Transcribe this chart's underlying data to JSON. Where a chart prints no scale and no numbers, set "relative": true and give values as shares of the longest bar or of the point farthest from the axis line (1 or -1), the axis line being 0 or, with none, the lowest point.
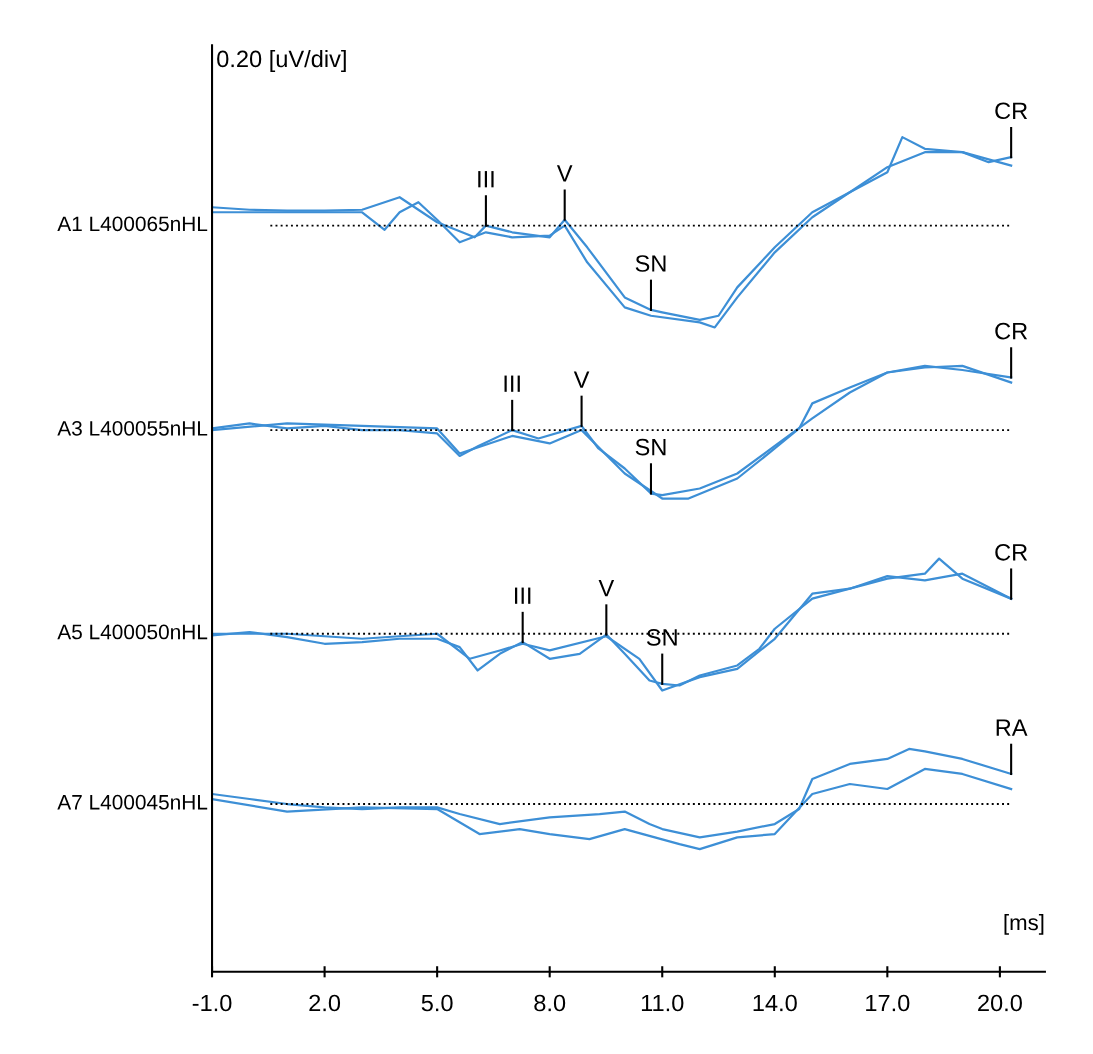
{
  "chart_data": {
    "type": "line",
    "relative": true,
    "xlabel": "[ms]",
    "ylabel": "0.20 [uV/div]",
    "xlim": [
      -1.0,
      21.2
    ],
    "xticks": [
      {
        "value": -1,
        "label": "-1.0"
      },
      {
        "value": 2,
        "label": "2.0"
      },
      {
        "value": 5,
        "label": "5.0"
      },
      {
        "value": 8,
        "label": "8.0"
      },
      {
        "value": 11,
        "label": "11.0"
      },
      {
        "value": 14,
        "label": "14.0"
      },
      {
        "value": 17,
        "label": "17.0"
      },
      {
        "value": 20,
        "label": "20.0"
      }
    ],
    "grid": false,
    "marker": "none",
    "line_style": "solid",
    "series": [
      {
        "color": "#3d8fd6",
        "x": [
          -1,
          0,
          1,
          2,
          3,
          4,
          5,
          6,
          6.3,
          7,
          8,
          8.4,
          9,
          10,
          10.7,
          11,
          12,
          12.5,
          13,
          14,
          15,
          16,
          17,
          17.4,
          18,
          19,
          19.7,
          20.3
        ],
        "values": [
          0.916,
          0.913,
          0.912,
          0.912,
          0.913,
          0.928,
          0.898,
          0.88,
          0.894,
          0.886,
          0.88,
          0.901,
          0.868,
          0.808,
          0.793,
          0.79,
          0.781,
          0.786,
          0.82,
          0.868,
          0.91,
          0.934,
          0.958,
          1.0,
          0.986,
          0.982,
          0.97,
          0.976
        ]
      },
      {
        "color": "#3d8fd6",
        "x": [
          -1,
          1,
          2,
          3,
          3.6,
          4,
          4.5,
          5,
          5.6,
          6.3,
          7,
          8,
          8.4,
          9,
          10,
          10.7,
          12,
          12.4,
          13,
          14,
          15,
          16,
          17,
          18,
          19,
          20.3
        ],
        "values": [
          0.91,
          0.91,
          0.91,
          0.91,
          0.889,
          0.91,
          0.922,
          0.901,
          0.874,
          0.886,
          0.88,
          0.882,
          0.894,
          0.85,
          0.796,
          0.786,
          0.778,
          0.772,
          0.808,
          0.862,
          0.904,
          0.934,
          0.964,
          0.982,
          0.982,
          0.966
        ]
      },
      {
        "color": "#3d8fd6",
        "x": [
          -1,
          0,
          1,
          2,
          3,
          4,
          5,
          5.6,
          6.1,
          7,
          7.7,
          8.85,
          9.3,
          10,
          10.7,
          11,
          12,
          13,
          14,
          15,
          16,
          17,
          18,
          19,
          20.3
        ],
        "values": [
          0.651,
          0.657,
          0.651,
          0.654,
          0.649,
          0.649,
          0.645,
          0.618,
          0.63,
          0.649,
          0.639,
          0.654,
          0.627,
          0.603,
          0.573,
          0.571,
          0.579,
          0.597,
          0.63,
          0.663,
          0.694,
          0.718,
          0.726,
          0.721,
          0.712
        ]
      },
      {
        "color": "#3d8fd6",
        "x": [
          -1,
          1,
          3,
          5,
          5.6,
          7,
          8,
          8.85,
          10,
          11,
          11.7,
          13,
          14,
          14.65,
          15,
          16,
          17,
          18,
          19,
          20.3
        ],
        "values": [
          0.649,
          0.657,
          0.654,
          0.651,
          0.621,
          0.642,
          0.633,
          0.649,
          0.597,
          0.567,
          0.567,
          0.591,
          0.627,
          0.651,
          0.681,
          0.7,
          0.718,
          0.724,
          0.726,
          0.706
        ]
      },
      {
        "color": "#3d8fd6",
        "x": [
          -1,
          0,
          1,
          2,
          3,
          4,
          5,
          5.6,
          6.08,
          6.67,
          7.28,
          8,
          8.8,
          9.51,
          10,
          10.66,
          11,
          11.46,
          12,
          13,
          13.59,
          14,
          15,
          16,
          17,
          18,
          18.38,
          19,
          20.3
        ],
        "values": [
          0.403,
          0.407,
          0.401,
          0.393,
          0.395,
          0.399,
          0.399,
          0.389,
          0.361,
          0.381,
          0.395,
          0.375,
          0.381,
          0.404,
          0.381,
          0.349,
          0.345,
          0.343,
          0.355,
          0.367,
          0.387,
          0.411,
          0.447,
          0.459,
          0.471,
          0.477,
          0.495,
          0.471,
          0.447
        ]
      },
      {
        "color": "#3d8fd6",
        "x": [
          -1,
          1,
          3,
          5,
          5.87,
          6.67,
          7.28,
          8,
          9.51,
          10.39,
          11,
          12,
          13,
          14,
          15,
          16,
          17,
          18,
          19,
          20.3
        ],
        "values": [
          0.405,
          0.405,
          0.399,
          0.405,
          0.375,
          0.385,
          0.393,
          0.385,
          0.402,
          0.375,
          0.337,
          0.353,
          0.363,
          0.399,
          0.453,
          0.459,
          0.474,
          0.469,
          0.477,
          0.447
        ]
      },
      {
        "color": "#3d8fd6",
        "x": [
          -1,
          0,
          1,
          2,
          3,
          4,
          5,
          5.6,
          6.67,
          8,
          9.33,
          10,
          10.66,
          11,
          12,
          13,
          14,
          14.65,
          15,
          16,
          17,
          17.58,
          18,
          19,
          20.3
        ],
        "values": [
          0.213,
          0.207,
          0.201,
          0.197,
          0.195,
          0.197,
          0.197,
          0.189,
          0.177,
          0.185,
          0.189,
          0.192,
          0.177,
          0.171,
          0.161,
          0.168,
          0.177,
          0.195,
          0.231,
          0.249,
          0.255,
          0.267,
          0.264,
          0.255,
          0.237
        ]
      },
      {
        "color": "#3d8fd6",
        "x": [
          -1,
          1,
          3,
          5,
          6.13,
          7.2,
          8,
          9.06,
          10,
          11.46,
          12,
          13,
          14,
          15,
          16,
          17,
          18,
          19,
          20.3
        ],
        "values": [
          0.207,
          0.192,
          0.197,
          0.195,
          0.165,
          0.171,
          0.165,
          0.159,
          0.171,
          0.153,
          0.147,
          0.161,
          0.165,
          0.213,
          0.225,
          0.219,
          0.243,
          0.237,
          0.219
        ]
      }
    ],
    "ref_lines": [
      {
        "axis": "y",
        "value": 0.894,
        "color": "#000000",
        "line_style": "dotted"
      },
      {
        "axis": "y",
        "value": 0.649,
        "color": "#000000",
        "line_style": "dotted"
      },
      {
        "axis": "y",
        "value": 0.405,
        "color": "#000000",
        "line_style": "dotted"
      },
      {
        "axis": "y",
        "value": 0.201,
        "color": "#000000",
        "line_style": "dotted"
      }
    ],
    "annotations": [
      "A1 L400065nHL",
      "A3 L400055nHL",
      "A5 L400050nHL",
      "A7 L400045nHL",
      {
        "text": "III",
        "x": 6.3,
        "y": 0.894
      },
      {
        "text": "V",
        "x": 8.4,
        "y": 0.901
      },
      {
        "text": "SN",
        "x": 10.7,
        "y": 0.793
      },
      {
        "text": "CR",
        "x": 20.3,
        "y": 0.976
      },
      {
        "text": "III",
        "x": 7.0,
        "y": 0.649
      },
      {
        "text": "V",
        "x": 8.85,
        "y": 0.654
      },
      {
        "text": "SN",
        "x": 10.7,
        "y": 0.573
      },
      {
        "text": "CR",
        "x": 20.3,
        "y": 0.712
      },
      {
        "text": "III",
        "x": 7.28,
        "y": 0.395
      },
      {
        "text": "V",
        "x": 9.51,
        "y": 0.404
      },
      {
        "text": "SN",
        "x": 11.0,
        "y": 0.345
      },
      {
        "text": "CR",
        "x": 20.3,
        "y": 0.447
      },
      {
        "text": "RA",
        "x": 20.3,
        "y": 0.237
      }
    ]
  }
}
